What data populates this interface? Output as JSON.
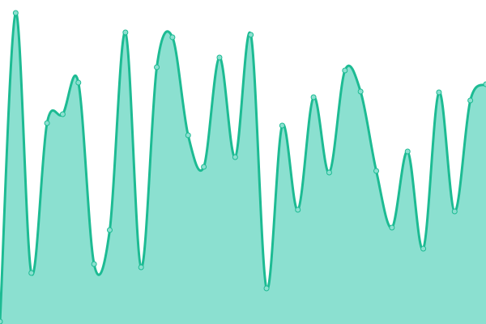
{
  "chart_data": {
    "type": "area",
    "title": "",
    "xlabel": "",
    "ylabel": "",
    "x": [
      0,
      1,
      2,
      3,
      4,
      5,
      6,
      7,
      8,
      9,
      10,
      11,
      12,
      13,
      14,
      15,
      16,
      17,
      18,
      19,
      20,
      21,
      22,
      23,
      24,
      25,
      26,
      27,
      28,
      29,
      30,
      31
    ],
    "series": [
      {
        "values": [
          3,
          384,
          63,
          248,
          259,
          298,
          74,
          116,
          360,
          70,
          317,
          354,
          233,
          194,
          329,
          206,
          357,
          44,
          245,
          141,
          280,
          187,
          313,
          287,
          189,
          119,
          213,
          93,
          286,
          139,
          276,
          296
        ]
      }
    ],
    "xlim": [
      0,
      31
    ],
    "ylim": [
      0,
      400
    ],
    "grid": false,
    "axes_visible": false,
    "smoothing": "curved",
    "colors": {
      "line": "#1dbb93",
      "fill": "#8be0d0",
      "marker_fill": "#8be0d0",
      "marker_stroke": "#1dbb93"
    }
  }
}
